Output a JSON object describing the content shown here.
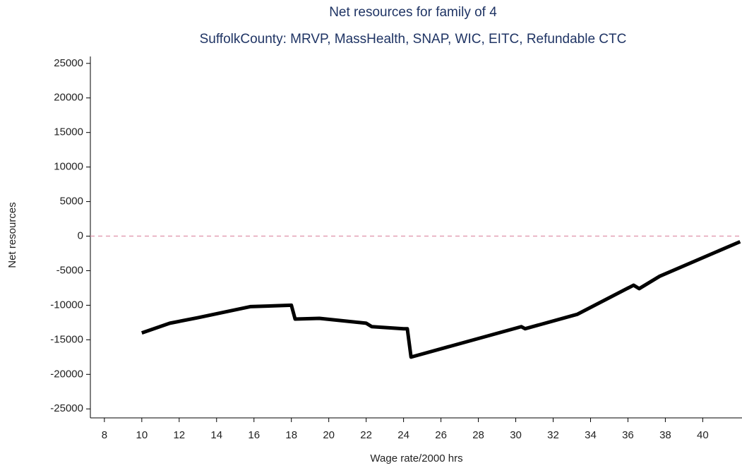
{
  "chart_data": {
    "type": "line",
    "title": "Net resources for family of 4",
    "subtitle": "SuffolkCounty: MRVP, MassHealth, SNAP, WIC, EITC, Refundable CTC",
    "x_label": "Wage rate/2000 hrs",
    "y_label": "Net resources",
    "x": [
      10,
      11.5,
      13,
      15.8,
      18,
      18.2,
      19.5,
      22,
      22.3,
      24,
      24.2,
      24.4,
      30.3,
      30.5,
      33.3,
      36.3,
      36.6,
      37.7,
      42
    ],
    "values": [
      -14000,
      -12600,
      -11800,
      -10200,
      -10000,
      -12000,
      -11900,
      -12600,
      -13100,
      -13400,
      -13400,
      -17500,
      -13100,
      -13400,
      -11300,
      -7100,
      -7600,
      -5800,
      -800
    ],
    "color": "#000000",
    "refline": 0,
    "refline_color": "#e3a0b4",
    "xlim": [
      7.25,
      42.1
    ],
    "xticks": [
      8,
      10,
      12,
      14,
      16,
      18,
      20,
      22,
      24,
      26,
      28,
      30,
      32,
      34,
      36,
      38,
      40
    ],
    "ylim": [
      -26300,
      26000
    ],
    "yticks": [
      -25000,
      -20000,
      -15000,
      -10000,
      -5000,
      0,
      5000,
      10000,
      15000,
      20000,
      25000
    ]
  }
}
